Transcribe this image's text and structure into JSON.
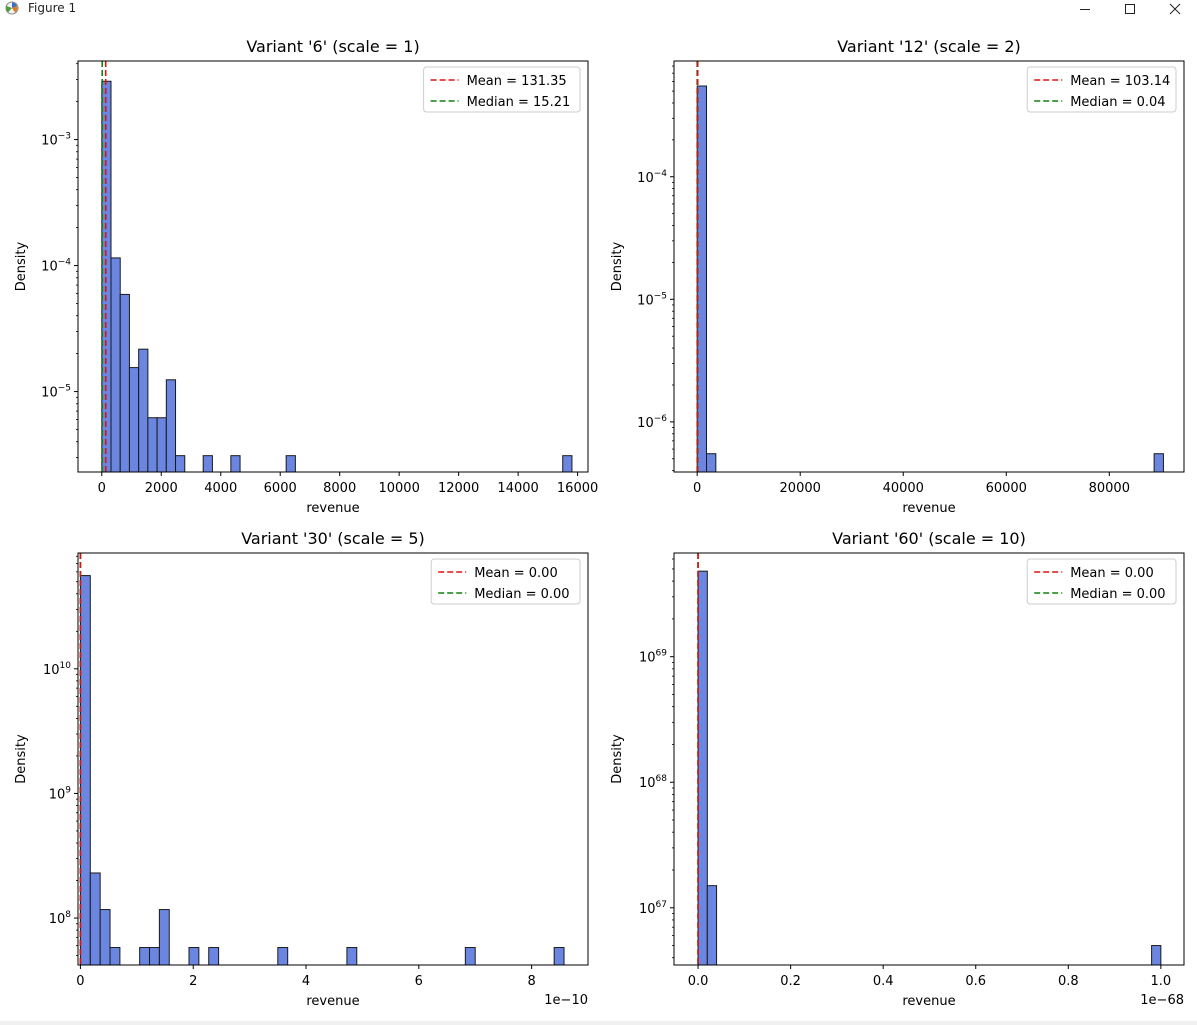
{
  "window": {
    "title": "Figure 1",
    "icons": {
      "app": "matplotlib-icon",
      "minimize": "minimize-icon",
      "maximize": "maximize-icon",
      "close": "close-icon"
    }
  },
  "colors": {
    "bar_fill": "#6b86e0",
    "bar_edge": "#1a1a1a",
    "mean": "#e01010",
    "median": "#108010",
    "axis": "#000000",
    "text": "#000000"
  },
  "chart_data": [
    {
      "type": "bar",
      "title": "Variant '6' (scale = 1)",
      "xlabel": "revenue",
      "ylabel": "Density",
      "yscale": "log",
      "xlim": [
        -800,
        16350
      ],
      "ylim": [
        2.3e-06,
        0.0042
      ],
      "xticks": [
        0,
        2000,
        4000,
        6000,
        8000,
        10000,
        12000,
        14000,
        16000
      ],
      "xtick_labels": [
        "0",
        "2000",
        "4000",
        "6000",
        "8000",
        "10000",
        "12000",
        "14000",
        "16000"
      ],
      "yticks": [
        0.001,
        0.0001,
        1e-05
      ],
      "ytick_labels": [
        {
          "base": "10",
          "exp": "−3"
        },
        {
          "base": "10",
          "exp": "−4"
        },
        {
          "base": "10",
          "exp": "−5"
        }
      ],
      "x_offset_label": "",
      "bars": [
        {
          "x0": 0,
          "x1": 310,
          "v": 0.0029
        },
        {
          "x0": 310,
          "x1": 620,
          "v": 0.000115
        },
        {
          "x0": 620,
          "x1": 930,
          "v": 5.9e-05
        },
        {
          "x0": 930,
          "x1": 1240,
          "v": 1.55e-05
        },
        {
          "x0": 1240,
          "x1": 1550,
          "v": 2.17e-05
        },
        {
          "x0": 1550,
          "x1": 1860,
          "v": 6.2e-06
        },
        {
          "x0": 1860,
          "x1": 2170,
          "v": 6.2e-06
        },
        {
          "x0": 2170,
          "x1": 2480,
          "v": 1.24e-05
        },
        {
          "x0": 2480,
          "x1": 2790,
          "v": 3.1e-06
        },
        {
          "x0": 3410,
          "x1": 3720,
          "v": 3.1e-06
        },
        {
          "x0": 4340,
          "x1": 4650,
          "v": 3.1e-06
        },
        {
          "x0": 6200,
          "x1": 6510,
          "v": 3.1e-06
        },
        {
          "x0": 15500,
          "x1": 15810,
          "v": 3.1e-06
        }
      ],
      "mean": 131.35,
      "median": 15.21,
      "legend": {
        "mean_label": "Mean = 131.35",
        "median_label": "Median = 15.21",
        "loc": "upper right"
      }
    },
    {
      "type": "bar",
      "title": "Variant '12' (scale = 2)",
      "xlabel": "revenue",
      "ylabel": "Density",
      "yscale": "log",
      "xlim": [
        -4500,
        94500
      ],
      "ylim": [
        3.9e-07,
        0.00088
      ],
      "xticks": [
        0,
        20000,
        40000,
        60000,
        80000
      ],
      "xtick_labels": [
        "0",
        "20000",
        "40000",
        "60000",
        "80000"
      ],
      "yticks": [
        0.0001,
        1e-05,
        1e-06
      ],
      "ytick_labels": [
        {
          "base": "10",
          "exp": "−4"
        },
        {
          "base": "10",
          "exp": "−5"
        },
        {
          "base": "10",
          "exp": "−6"
        }
      ],
      "x_offset_label": "",
      "bars": [
        {
          "x0": 0,
          "x1": 1810,
          "v": 0.00055
        },
        {
          "x0": 1810,
          "x1": 3620,
          "v": 5.5e-07
        },
        {
          "x0": 88700,
          "x1": 90510,
          "v": 5.5e-07
        }
      ],
      "mean": 103.14,
      "median": 0.04,
      "legend": {
        "mean_label": "Mean = 103.14",
        "median_label": "Median = 0.04",
        "loc": "upper right"
      }
    },
    {
      "type": "bar",
      "title": "Variant '30' (scale = 5)",
      "xlabel": "revenue",
      "ylabel": "Density",
      "yscale": "log",
      "xlim": [
        -4.3e-12,
        9e-10
      ],
      "ylim": [
        42000000.0,
        85000000000.0
      ],
      "xticks": [
        0,
        2e-10,
        4e-10,
        6e-10,
        8e-10
      ],
      "xtick_labels": [
        "0",
        "2",
        "4",
        "6",
        "8"
      ],
      "yticks": [
        10000000000.0,
        1000000000.0,
        100000000.0
      ],
      "ytick_labels": [
        {
          "base": "10",
          "exp": "10"
        },
        {
          "base": "10",
          "exp": "9"
        },
        {
          "base": "10",
          "exp": "8"
        }
      ],
      "x_offset_label": "1e−10",
      "bars": [
        {
          "x0": 0,
          "x1": 1.75e-11,
          "v": 56000000000.0
        },
        {
          "x0": 1.75e-11,
          "x1": 3.5e-11,
          "v": 230000000.0
        },
        {
          "x0": 3.5e-11,
          "x1": 5.25e-11,
          "v": 117000000.0
        },
        {
          "x0": 5.25e-11,
          "x1": 7e-11,
          "v": 58000000.0
        },
        {
          "x0": 1.05e-10,
          "x1": 1.225e-10,
          "v": 58000000.0
        },
        {
          "x0": 1.225e-10,
          "x1": 1.4e-10,
          "v": 58000000.0
        },
        {
          "x0": 1.4e-10,
          "x1": 1.575e-10,
          "v": 117000000.0
        },
        {
          "x0": 1.925e-10,
          "x1": 2.1e-10,
          "v": 58000000.0
        },
        {
          "x0": 2.275e-10,
          "x1": 2.45e-10,
          "v": 58000000.0
        },
        {
          "x0": 3.5e-10,
          "x1": 3.675e-10,
          "v": 58000000.0
        },
        {
          "x0": 4.725e-10,
          "x1": 4.9e-10,
          "v": 58000000.0
        },
        {
          "x0": 6.825e-10,
          "x1": 7e-10,
          "v": 58000000.0
        },
        {
          "x0": 8.4e-10,
          "x1": 8.575e-10,
          "v": 58000000.0
        }
      ],
      "mean": 0.0,
      "median": 0.0,
      "legend": {
        "mean_label": "Mean = 0.00",
        "median_label": "Median = 0.00",
        "loc": "upper right"
      }
    },
    {
      "type": "bar",
      "title": "Variant '60' (scale = 10)",
      "xlabel": "revenue",
      "ylabel": "Density",
      "yscale": "log",
      "xlim": [
        -5.2e-70,
        1.05e-68
      ],
      "ylim": [
        3.5e+66,
        6.7e+69
      ],
      "xticks": [
        0,
        2e-69,
        4e-69,
        6e-69,
        8e-69,
        1e-68
      ],
      "xtick_labels": [
        "0.0",
        "0.2",
        "0.4",
        "0.6",
        "0.8",
        "1.0"
      ],
      "yticks": [
        1e+69,
        1e+68,
        1e+67
      ],
      "ytick_labels": [
        {
          "base": "10",
          "exp": "69"
        },
        {
          "base": "10",
          "exp": "68"
        },
        {
          "base": "10",
          "exp": "67"
        }
      ],
      "x_offset_label": "1e−68",
      "bars": [
        {
          "x0": 0,
          "x1": 2e-70,
          "v": 4.8e+69
        },
        {
          "x0": 2e-70,
          "x1": 4e-70,
          "v": 1.5e+67
        },
        {
          "x0": 9.8e-69,
          "x1": 1e-68,
          "v": 5e+66
        }
      ],
      "mean": 0.0,
      "median": 0.0,
      "legend": {
        "mean_label": "Mean = 0.00",
        "median_label": "Median = 0.00",
        "loc": "upper right"
      }
    }
  ]
}
